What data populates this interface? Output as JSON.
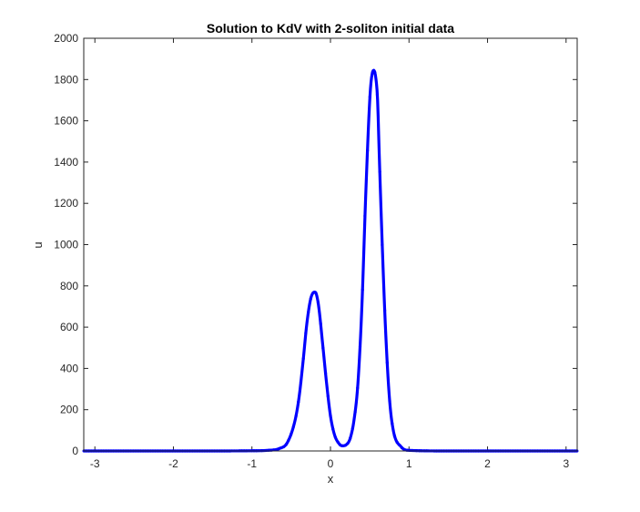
{
  "chart_data": {
    "type": "line",
    "title": "Solution to KdV with 2-soliton initial data",
    "xlabel": "x",
    "ylabel": "u",
    "xlim": [
      -3.14159,
      3.14159
    ],
    "ylim": [
      0,
      2000
    ],
    "xticks": [
      -3,
      -2,
      -1,
      0,
      1,
      2,
      3
    ],
    "xtick_labels": [
      "-3",
      "-2",
      "-1",
      "0",
      "1",
      "2",
      "3"
    ],
    "yticks": [
      0,
      200,
      400,
      600,
      800,
      1000,
      1200,
      1400,
      1600,
      1800,
      2000
    ],
    "ytick_labels": [
      "0",
      "200",
      "400",
      "600",
      "800",
      "1000",
      "1200",
      "1400",
      "1600",
      "1800",
      "2000"
    ],
    "grid": false,
    "line_color": "#0000ff",
    "marker": "point",
    "series": [
      {
        "x": [
          -3.14,
          -2.5,
          -2.0,
          -1.5,
          -1.0,
          -0.8,
          -0.65,
          -0.55,
          -0.45,
          -0.4,
          -0.35,
          -0.3,
          -0.25,
          -0.2,
          -0.18,
          -0.15,
          -0.1,
          -0.05,
          0.0,
          0.05,
          0.1,
          0.15,
          0.2,
          0.25,
          0.3,
          0.35,
          0.4,
          0.45,
          0.5,
          0.52,
          0.55,
          0.58,
          0.6,
          0.62,
          0.65,
          0.7,
          0.75,
          0.8,
          0.9,
          1.0,
          1.5,
          2.0,
          2.5,
          3.14
        ],
        "y": [
          0,
          0,
          0,
          0,
          1,
          3,
          12,
          40,
          150,
          260,
          430,
          620,
          740,
          770,
          760,
          700,
          520,
          330,
          170,
          80,
          40,
          25,
          30,
          60,
          150,
          330,
          700,
          1250,
          1700,
          1800,
          1845,
          1800,
          1700,
          1450,
          1100,
          600,
          260,
          100,
          20,
          3,
          0,
          0,
          0,
          0
        ]
      }
    ]
  }
}
